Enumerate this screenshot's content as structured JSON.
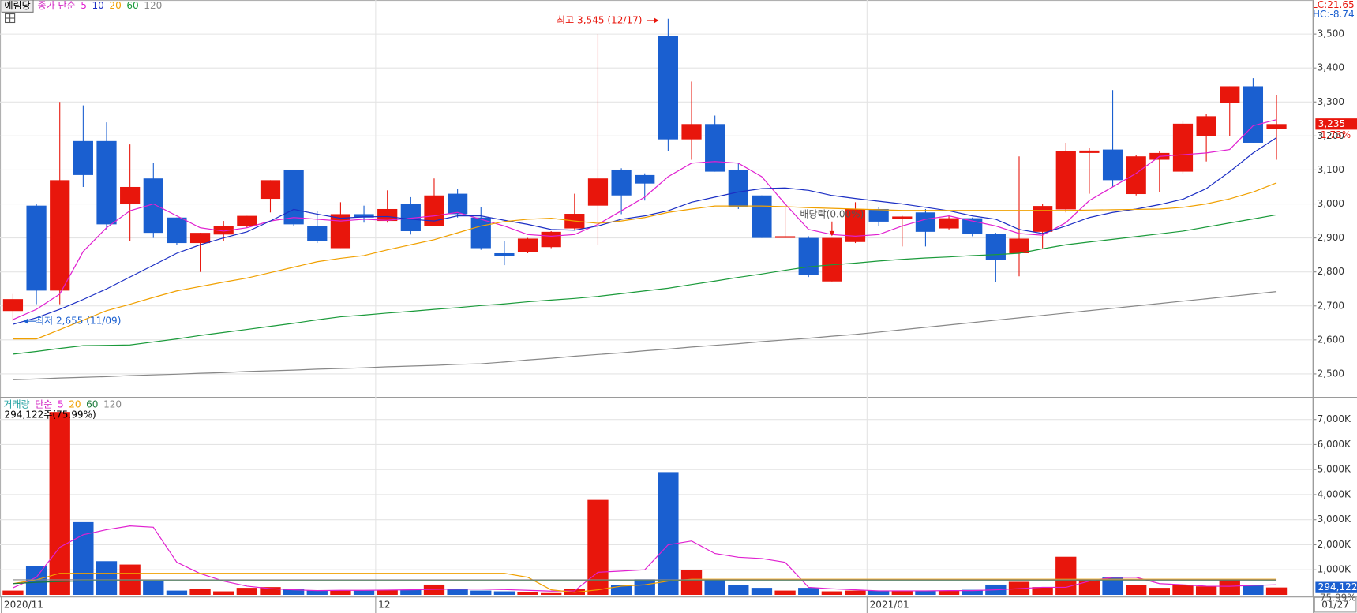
{
  "header": {
    "stock": "예림당",
    "lc": "LC:21.65",
    "hc": "HC:-8.74"
  },
  "chart_data": [
    {
      "type": "candlestick",
      "legend_title": "종가 단순",
      "legend_title_color": "#d020c0",
      "up_color": "#e8160c",
      "down_color": "#1a5fd0",
      "categories": [
        "2020/11",
        null,
        null,
        null,
        null,
        null,
        null,
        null,
        null,
        null,
        null,
        null,
        null,
        null,
        null,
        null,
        "12",
        null,
        null,
        null,
        null,
        null,
        null,
        null,
        null,
        null,
        null,
        null,
        null,
        null,
        null,
        null,
        null,
        null,
        null,
        null,
        null,
        "2021/01",
        null,
        null,
        null,
        null,
        null,
        null,
        null,
        null,
        null,
        null,
        null,
        null,
        null,
        null,
        null,
        null,
        null
      ],
      "open": [
        2685,
        2995,
        2745,
        3185,
        3185,
        3000,
        3075,
        2960,
        2885,
        2910,
        2935,
        3015,
        3100,
        2935,
        2870,
        2970,
        2950,
        3000,
        2935,
        3030,
        2960,
        2855,
        2858,
        2873,
        2928,
        2995,
        3100,
        3085,
        3495,
        3190,
        3235,
        3100,
        3025,
        2900,
        2900,
        2772,
        2888,
        2985,
        2956,
        2975,
        2928,
        2958,
        2913,
        2855,
        2918,
        2984,
        3150,
        3160,
        3029,
        3130,
        3095,
        3200,
        3298,
        3346,
        3220
      ],
      "high": [
        2735,
        3000,
        3300,
        3290,
        3240,
        3175,
        3120,
        2960,
        2915,
        2950,
        2965,
        3070,
        3100,
        2980,
        3005,
        2995,
        3040,
        3020,
        3075,
        3045,
        2990,
        2890,
        2900,
        2920,
        3030,
        3500,
        3105,
        3090,
        3545,
        3360,
        3260,
        3120,
        3025,
        2990,
        2905,
        2900,
        3005,
        2990,
        2965,
        2985,
        2965,
        2960,
        2915,
        3140,
        3000,
        3180,
        3165,
        3335,
        3145,
        3155,
        3245,
        3265,
        3346,
        3370,
        3320
      ],
      "low": [
        2655,
        2705,
        2705,
        3050,
        2925,
        2890,
        2900,
        2880,
        2800,
        2890,
        2930,
        2975,
        2935,
        2885,
        2870,
        2945,
        2945,
        2910,
        2935,
        2960,
        2865,
        2820,
        2855,
        2870,
        2925,
        2880,
        2970,
        3010,
        3155,
        3130,
        3095,
        2985,
        2900,
        2900,
        2785,
        2772,
        2885,
        2935,
        2875,
        2875,
        2925,
        2905,
        2770,
        2787,
        2870,
        2975,
        3030,
        3050,
        3025,
        3035,
        3090,
        3125,
        3200,
        3180,
        3130
      ],
      "close": [
        2720,
        2745,
        3070,
        3085,
        2940,
        3050,
        2915,
        2885,
        2915,
        2935,
        2965,
        3070,
        2940,
        2890,
        2970,
        2960,
        2985,
        2920,
        3025,
        2970,
        2870,
        2848,
        2898,
        2918,
        2971,
        3075,
        3025,
        3060,
        3190,
        3235,
        3095,
        2990,
        2900,
        2905,
        2792,
        2900,
        2985,
        2948,
        2963,
        2918,
        2958,
        2913,
        2835,
        2898,
        2994,
        3155,
        3157,
        3070,
        3140,
        3150,
        3236,
        3258,
        3346,
        3180,
        3235
      ],
      "series": [
        {
          "name": "5",
          "color": "#e020d0",
          "values": [
            2660,
            2690,
            2735,
            2860,
            2930,
            2980,
            3000,
            2965,
            2930,
            2920,
            2930,
            2950,
            2960,
            2955,
            2950,
            2955,
            2952,
            2958,
            2965,
            2975,
            2955,
            2935,
            2910,
            2905,
            2910,
            2940,
            2980,
            3020,
            3080,
            3120,
            3125,
            3120,
            3080,
            3000,
            2925,
            2910,
            2905,
            2910,
            2935,
            2955,
            2965,
            2950,
            2935,
            2913,
            2908,
            2945,
            3010,
            3050,
            3090,
            3140,
            3145,
            3150,
            3160,
            3230,
            3248
          ]
        },
        {
          "name": "10",
          "color": "#1c2fc4",
          "values": [
            2646,
            2665,
            2690,
            2719,
            2750,
            2785,
            2820,
            2855,
            2880,
            2900,
            2918,
            2950,
            2984,
            2970,
            2958,
            2962,
            2963,
            2955,
            2950,
            2965,
            2965,
            2952,
            2940,
            2925,
            2923,
            2935,
            2955,
            2965,
            2980,
            3005,
            3020,
            3035,
            3045,
            3047,
            3040,
            3025,
            3016,
            3008,
            3000,
            2990,
            2980,
            2965,
            2955,
            2925,
            2913,
            2935,
            2960,
            2975,
            2985,
            2998,
            3014,
            3045,
            3095,
            3150,
            3195
          ]
        },
        {
          "name": "20",
          "color": "#f0a000",
          "values": [
            2603,
            2603,
            2630,
            2658,
            2686,
            2705,
            2725,
            2744,
            2757,
            2770,
            2782,
            2798,
            2814,
            2830,
            2840,
            2848,
            2865,
            2880,
            2895,
            2915,
            2935,
            2948,
            2955,
            2958,
            2950,
            2943,
            2950,
            2960,
            2975,
            2985,
            2994,
            2994,
            2994,
            2992,
            2989,
            2987,
            2985,
            2983,
            2981,
            2981,
            2981,
            2981,
            2981,
            2981,
            2981,
            2981,
            2982,
            2983,
            2984,
            2985,
            2990,
            3000,
            3015,
            3035,
            3062
          ]
        },
        {
          "name": "60",
          "color": "#1a9a3a",
          "values": [
            2558,
            2566,
            2575,
            2583,
            2584,
            2585,
            2594,
            2603,
            2613,
            2622,
            2631,
            2640,
            2649,
            2659,
            2668,
            2673,
            2679,
            2684,
            2690,
            2695,
            2701,
            2706,
            2712,
            2717,
            2722,
            2728,
            2736,
            2744,
            2752,
            2763,
            2773,
            2784,
            2794,
            2805,
            2815,
            2821,
            2826,
            2832,
            2837,
            2841,
            2844,
            2848,
            2851,
            2855,
            2868,
            2880,
            2888,
            2896,
            2904,
            2912,
            2920,
            2932,
            2944,
            2956,
            2968
          ]
        },
        {
          "name": "120",
          "color": "#888888",
          "values": [
            2483,
            2485,
            2488,
            2490,
            2492,
            2495,
            2497,
            2499,
            2502,
            2504,
            2507,
            2509,
            2511,
            2514,
            2516,
            2518,
            2521,
            2523,
            2525,
            2528,
            2530,
            2535,
            2541,
            2546,
            2552,
            2557,
            2562,
            2568,
            2573,
            2579,
            2584,
            2589,
            2595,
            2600,
            2605,
            2611,
            2616,
            2623,
            2630,
            2637,
            2644,
            2651,
            2658,
            2665,
            2672,
            2679,
            2686,
            2693,
            2700,
            2707,
            2714,
            2721,
            2728,
            2735,
            2742
          ]
        }
      ],
      "ylim": [
        2435,
        3595
      ],
      "yticks": [
        {
          "value": 2500,
          "label": "2,500"
        },
        {
          "value": 2600,
          "label": "2,600"
        },
        {
          "value": 2700,
          "label": "2,700"
        },
        {
          "value": 2800,
          "label": "2,800"
        },
        {
          "value": 2900,
          "label": "2,900"
        },
        {
          "value": 3000,
          "label": "3,000"
        },
        {
          "value": 3100,
          "label": "3,100"
        },
        {
          "value": 3200,
          "label": "3,200"
        },
        {
          "value": 3300,
          "label": "3,300"
        },
        {
          "value": 3400,
          "label": "3,400"
        },
        {
          "value": 3500,
          "label": "3,500"
        }
      ],
      "grid": true,
      "high_note": {
        "text": "최고 3,545 (12/17)",
        "index": 28
      },
      "low_note": {
        "text": "최저 2,655 (11/09)",
        "index": 0
      },
      "event_note": {
        "text": "배당락(0.00%)",
        "index": 35
      },
      "last_label": "3,235",
      "change_label": "1.73%",
      "last_date": "01/27"
    },
    {
      "type": "volume",
      "title": "거래량",
      "title_color": "#20a0a0",
      "legend_title": "단순",
      "legend_title_color": "#d020c0",
      "summary": "294,122주(75.99%)",
      "values": [
        170,
        1140,
        7300,
        2900,
        1345,
        1210,
        550,
        170,
        240,
        140,
        280,
        310,
        240,
        170,
        170,
        170,
        200,
        200,
        410,
        240,
        170,
        140,
        100,
        70,
        240,
        3790,
        380,
        620,
        4900,
        1000,
        590,
        380,
        280,
        170,
        280,
        140,
        170,
        170,
        170,
        170,
        170,
        200,
        410,
        520,
        310,
        1520,
        620,
        690,
        380,
        280,
        380,
        340,
        590,
        380,
        294.122
      ],
      "series": [
        {
          "name": "5",
          "color": "#e020d0",
          "values": [
            280,
            700,
            1900,
            2400,
            2600,
            2750,
            2700,
            1300,
            850,
            550,
            350,
            250,
            200,
            170,
            180,
            180,
            190,
            200,
            220,
            230,
            230,
            210,
            180,
            150,
            160,
            900,
            950,
            1000,
            2000,
            2150,
            1650,
            1500,
            1450,
            1300,
            300,
            240,
            200,
            160,
            160,
            160,
            170,
            170,
            200,
            250,
            300,
            300,
            550,
            700,
            700,
            450,
            400,
            350,
            340,
            380,
            400
          ]
        },
        {
          "name": "20",
          "color": "#f0a000",
          "values": [
            450,
            600,
            860,
            860,
            860,
            860,
            860,
            860,
            860,
            860,
            860,
            860,
            860,
            860,
            860,
            860,
            860,
            860,
            860,
            860,
            860,
            860,
            700,
            200,
            100,
            200,
            350,
            400,
            550,
            620,
            620,
            620,
            620,
            620,
            620,
            620,
            620,
            620,
            620,
            620,
            620,
            620,
            620,
            620,
            620,
            620,
            620,
            620,
            620,
            620,
            620,
            620,
            620,
            620,
            620
          ]
        },
        {
          "name": "60",
          "color": "#1a7a3a",
          "values": [
            450,
            500,
            530,
            560,
            560,
            560,
            560,
            560,
            560,
            560,
            560,
            560,
            560,
            560,
            560,
            560,
            560,
            560,
            560,
            560,
            560,
            560,
            560,
            560,
            560,
            560,
            560,
            560,
            560,
            560,
            560,
            560,
            560,
            560,
            560,
            560,
            560,
            560,
            560,
            560,
            560,
            560,
            560,
            560,
            560,
            560,
            560,
            560,
            560,
            560,
            560,
            560,
            560,
            560,
            560
          ]
        },
        {
          "name": "120",
          "color": "#888888",
          "values": [
            600,
            600,
            600,
            600,
            600,
            600,
            600,
            600,
            600,
            600,
            600,
            600,
            600,
            600,
            600,
            600,
            600,
            600,
            600,
            600,
            600,
            600,
            600,
            600,
            600,
            600,
            600,
            600,
            600,
            600,
            600,
            600,
            600,
            600,
            600,
            600,
            600,
            600,
            600,
            600,
            600,
            600,
            600,
            600,
            600,
            600,
            600,
            600,
            600,
            600,
            600,
            600,
            600,
            600,
            600
          ]
        }
      ],
      "ylim": [
        0,
        7800
      ],
      "yticks": [
        {
          "value": 1000,
          "label": "1,000K"
        },
        {
          "value": 2000,
          "label": "2,000K"
        },
        {
          "value": 3000,
          "label": "3,000K"
        },
        {
          "value": 4000,
          "label": "4,000K"
        },
        {
          "value": 5000,
          "label": "5,000K"
        },
        {
          "value": 6000,
          "label": "6,000K"
        },
        {
          "value": 7000,
          "label": "7,000K"
        }
      ],
      "grid": true,
      "last_label": "294,122",
      "change_label": "75.99%"
    }
  ]
}
